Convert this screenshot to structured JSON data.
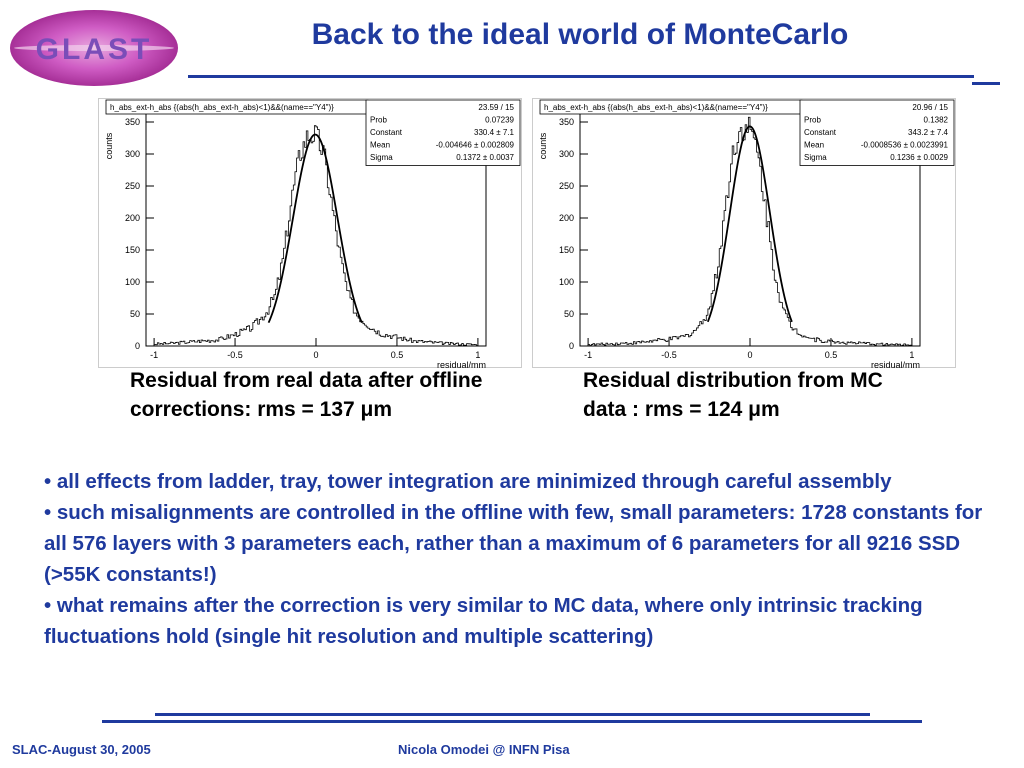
{
  "logo": {
    "text": "GLAST"
  },
  "header": {
    "title": "Back to the ideal world of MonteCarlo"
  },
  "plots": [
    {
      "caption": "Residual from real data after offline corrections: rms = 137 μm",
      "stats": {
        "title": "h_abs_ext-h_abs {(abs(h_abs_ext-h_abs)<1)&&(name==\"Y4\")}",
        "chi2ndf": "23.59 / 15",
        "rows": [
          {
            "label": "Prob",
            "value": "0.07239"
          },
          {
            "label": "Constant",
            "value": "330.4 ± 7.1"
          },
          {
            "label": "Mean",
            "value": "-0.004646 ± 0.002809"
          },
          {
            "label": "Sigma",
            "value": "0.1372 ± 0.0037"
          }
        ]
      },
      "ylabel": "counts",
      "xlabel": "residual/mm",
      "yticks": [
        "0",
        "50",
        "100",
        "150",
        "200",
        "250",
        "300",
        "350"
      ],
      "xticks": [
        "-1",
        "-0.5",
        "0",
        "0.5",
        "1"
      ]
    },
    {
      "caption": "Residual distribution from MC data : rms = 124 μm",
      "stats": {
        "title": "h_abs_ext-h_abs {(abs(h_abs_ext-h_abs)<1)&&(name==\"Y4\")}",
        "chi2ndf": "20.96 / 15",
        "rows": [
          {
            "label": "Prob",
            "value": "0.1382"
          },
          {
            "label": "Constant",
            "value": "343.2 ± 7.4"
          },
          {
            "label": "Mean",
            "value": "-0.0008536 ± 0.0023991"
          },
          {
            "label": "Sigma",
            "value": "0.1236 ± 0.0029"
          }
        ]
      },
      "ylabel": "counts",
      "xlabel": "residual/mm",
      "yticks": [
        "0",
        "50",
        "100",
        "150",
        "200",
        "250",
        "300",
        "350"
      ],
      "xticks": [
        "-1",
        "-0.5",
        "0",
        "0.5",
        "1"
      ]
    }
  ],
  "chart_data": [
    {
      "type": "histogram",
      "x": [
        -1,
        -0.9,
        -0.8,
        -0.7,
        -0.6,
        -0.5,
        -0.4,
        -0.35,
        -0.3,
        -0.25,
        -0.2,
        -0.15,
        -0.1,
        -0.05,
        0,
        0.05,
        0.1,
        0.15,
        0.2,
        0.25,
        0.3,
        0.35,
        0.4,
        0.5,
        0.6,
        0.7,
        0.8,
        0.9,
        1
      ],
      "counts": [
        3,
        4,
        6,
        8,
        10,
        18,
        28,
        40,
        55,
        80,
        140,
        230,
        300,
        330,
        330,
        300,
        220,
        140,
        80,
        50,
        38,
        28,
        20,
        14,
        8,
        6,
        4,
        3,
        2
      ],
      "fit": {
        "function": "gaus",
        "constant": 330.4,
        "mean": -0.004646,
        "sigma": 0.1372
      },
      "xlim": [
        -1.05,
        1.05
      ],
      "ylim": [
        0,
        375
      ],
      "xlabel": "residual/mm",
      "ylabel": "counts"
    },
    {
      "type": "histogram",
      "x": [
        -1,
        -0.9,
        -0.8,
        -0.7,
        -0.6,
        -0.5,
        -0.4,
        -0.35,
        -0.3,
        -0.25,
        -0.2,
        -0.15,
        -0.1,
        -0.05,
        0,
        0.05,
        0.1,
        0.15,
        0.2,
        0.25,
        0.3,
        0.35,
        0.4,
        0.5,
        0.6,
        0.7,
        0.8,
        0.9,
        1
      ],
      "counts": [
        2,
        3,
        4,
        5,
        8,
        10,
        15,
        22,
        35,
        60,
        120,
        220,
        310,
        340,
        340,
        300,
        210,
        120,
        60,
        32,
        22,
        15,
        10,
        7,
        5,
        4,
        3,
        2,
        2
      ],
      "fit": {
        "function": "gaus",
        "constant": 343.2,
        "mean": -0.0008536,
        "sigma": 0.1236
      },
      "xlim": [
        -1.05,
        1.05
      ],
      "ylim": [
        0,
        375
      ],
      "xlabel": "residual/mm",
      "ylabel": "counts"
    }
  ],
  "bullets": [
    "• all effects from ladder, tray, tower integration are minimized through careful assembly",
    "• such misalignments are controlled in the offline with few, small parameters: 1728 constants for all 576 layers with 3 parameters each, rather than a maximum of 6 parameters for all 9216 SSD (>55K constants!)",
    "• what remains after the correction is very similar to MC data, where only intrinsic tracking fluctuations hold (single hit resolution and multiple scattering)"
  ],
  "footer": {
    "left": "SLAC-August 30, 2005",
    "center": "Nicola Omodei @ INFN Pisa"
  },
  "colors": {
    "accent": "#1f3a9e",
    "logo": "#c04fb5"
  }
}
